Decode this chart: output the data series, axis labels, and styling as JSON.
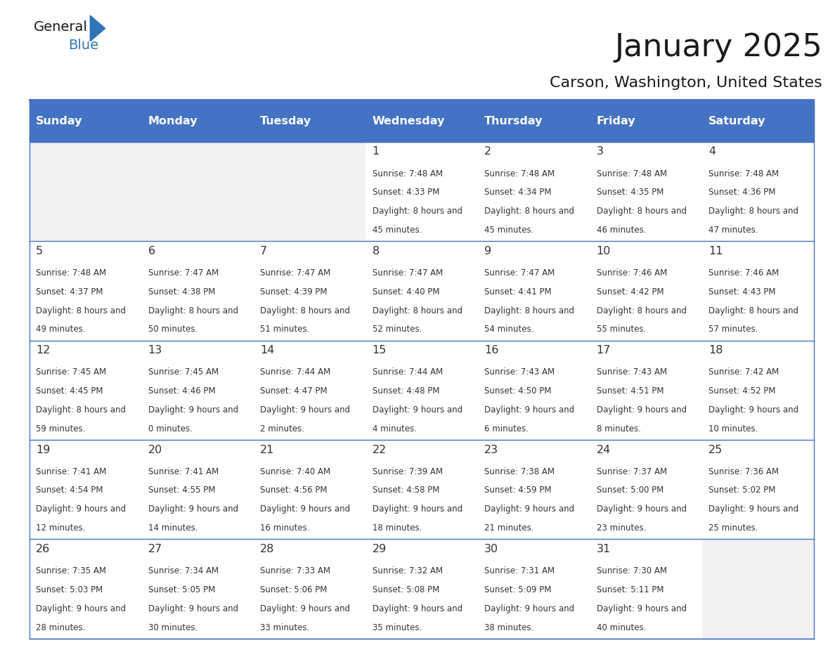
{
  "title": "January 2025",
  "subtitle": "Carson, Washington, United States",
  "header_bg_color": "#4472C4",
  "header_text_color": "#FFFFFF",
  "day_names": [
    "Sunday",
    "Monday",
    "Tuesday",
    "Wednesday",
    "Thursday",
    "Friday",
    "Saturday"
  ],
  "grid_line_color": "#4472C4",
  "cell_bg_color": "#FFFFFF",
  "alt_cell_bg_color": "#F2F2F2",
  "day_num_color": "#333333",
  "detail_text_color": "#333333",
  "logo_general_color": "#1a1a1a",
  "logo_blue_color": "#2E75B6",
  "weeks": [
    [
      {
        "day": "",
        "sunrise": "",
        "sunset": "",
        "daylight": ""
      },
      {
        "day": "",
        "sunrise": "",
        "sunset": "",
        "daylight": ""
      },
      {
        "day": "",
        "sunrise": "",
        "sunset": "",
        "daylight": ""
      },
      {
        "day": "1",
        "sunrise": "7:48 AM",
        "sunset": "4:33 PM",
        "daylight": "8 hours and 45 minutes."
      },
      {
        "day": "2",
        "sunrise": "7:48 AM",
        "sunset": "4:34 PM",
        "daylight": "8 hours and 45 minutes."
      },
      {
        "day": "3",
        "sunrise": "7:48 AM",
        "sunset": "4:35 PM",
        "daylight": "8 hours and 46 minutes."
      },
      {
        "day": "4",
        "sunrise": "7:48 AM",
        "sunset": "4:36 PM",
        "daylight": "8 hours and 47 minutes."
      }
    ],
    [
      {
        "day": "5",
        "sunrise": "7:48 AM",
        "sunset": "4:37 PM",
        "daylight": "8 hours and 49 minutes."
      },
      {
        "day": "6",
        "sunrise": "7:47 AM",
        "sunset": "4:38 PM",
        "daylight": "8 hours and 50 minutes."
      },
      {
        "day": "7",
        "sunrise": "7:47 AM",
        "sunset": "4:39 PM",
        "daylight": "8 hours and 51 minutes."
      },
      {
        "day": "8",
        "sunrise": "7:47 AM",
        "sunset": "4:40 PM",
        "daylight": "8 hours and 52 minutes."
      },
      {
        "day": "9",
        "sunrise": "7:47 AM",
        "sunset": "4:41 PM",
        "daylight": "8 hours and 54 minutes."
      },
      {
        "day": "10",
        "sunrise": "7:46 AM",
        "sunset": "4:42 PM",
        "daylight": "8 hours and 55 minutes."
      },
      {
        "day": "11",
        "sunrise": "7:46 AM",
        "sunset": "4:43 PM",
        "daylight": "8 hours and 57 minutes."
      }
    ],
    [
      {
        "day": "12",
        "sunrise": "7:45 AM",
        "sunset": "4:45 PM",
        "daylight": "8 hours and 59 minutes."
      },
      {
        "day": "13",
        "sunrise": "7:45 AM",
        "sunset": "4:46 PM",
        "daylight": "9 hours and 0 minutes."
      },
      {
        "day": "14",
        "sunrise": "7:44 AM",
        "sunset": "4:47 PM",
        "daylight": "9 hours and 2 minutes."
      },
      {
        "day": "15",
        "sunrise": "7:44 AM",
        "sunset": "4:48 PM",
        "daylight": "9 hours and 4 minutes."
      },
      {
        "day": "16",
        "sunrise": "7:43 AM",
        "sunset": "4:50 PM",
        "daylight": "9 hours and 6 minutes."
      },
      {
        "day": "17",
        "sunrise": "7:43 AM",
        "sunset": "4:51 PM",
        "daylight": "9 hours and 8 minutes."
      },
      {
        "day": "18",
        "sunrise": "7:42 AM",
        "sunset": "4:52 PM",
        "daylight": "9 hours and 10 minutes."
      }
    ],
    [
      {
        "day": "19",
        "sunrise": "7:41 AM",
        "sunset": "4:54 PM",
        "daylight": "9 hours and 12 minutes."
      },
      {
        "day": "20",
        "sunrise": "7:41 AM",
        "sunset": "4:55 PM",
        "daylight": "9 hours and 14 minutes."
      },
      {
        "day": "21",
        "sunrise": "7:40 AM",
        "sunset": "4:56 PM",
        "daylight": "9 hours and 16 minutes."
      },
      {
        "day": "22",
        "sunrise": "7:39 AM",
        "sunset": "4:58 PM",
        "daylight": "9 hours and 18 minutes."
      },
      {
        "day": "23",
        "sunrise": "7:38 AM",
        "sunset": "4:59 PM",
        "daylight": "9 hours and 21 minutes."
      },
      {
        "day": "24",
        "sunrise": "7:37 AM",
        "sunset": "5:00 PM",
        "daylight": "9 hours and 23 minutes."
      },
      {
        "day": "25",
        "sunrise": "7:36 AM",
        "sunset": "5:02 PM",
        "daylight": "9 hours and 25 minutes."
      }
    ],
    [
      {
        "day": "26",
        "sunrise": "7:35 AM",
        "sunset": "5:03 PM",
        "daylight": "9 hours and 28 minutes."
      },
      {
        "day": "27",
        "sunrise": "7:34 AM",
        "sunset": "5:05 PM",
        "daylight": "9 hours and 30 minutes."
      },
      {
        "day": "28",
        "sunrise": "7:33 AM",
        "sunset": "5:06 PM",
        "daylight": "9 hours and 33 minutes."
      },
      {
        "day": "29",
        "sunrise": "7:32 AM",
        "sunset": "5:08 PM",
        "daylight": "9 hours and 35 minutes."
      },
      {
        "day": "30",
        "sunrise": "7:31 AM",
        "sunset": "5:09 PM",
        "daylight": "9 hours and 38 minutes."
      },
      {
        "day": "31",
        "sunrise": "7:30 AM",
        "sunset": "5:11 PM",
        "daylight": "9 hours and 40 minutes."
      },
      {
        "day": "",
        "sunrise": "",
        "sunset": "",
        "daylight": ""
      }
    ]
  ]
}
